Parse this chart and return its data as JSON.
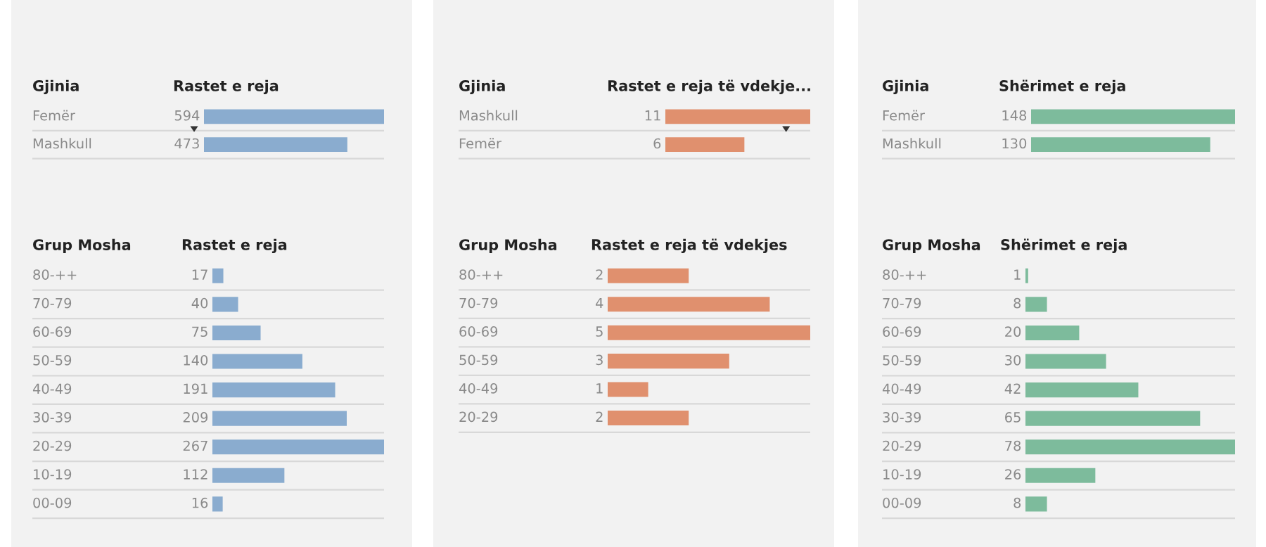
{
  "chart_data": [
    {
      "type": "bar",
      "orientation": "horizontal",
      "ylabel": "Gjinia",
      "xlabel": "Rastet e reja",
      "categories": [
        "Femër",
        "Mashkull"
      ],
      "values": [
        594,
        473
      ],
      "color": "#8aaccf",
      "data_labels": true,
      "grid": "y"
    },
    {
      "type": "bar",
      "orientation": "horizontal",
      "ylabel": "Gjinia",
      "xlabel": "Rastet e reja të vdekje...",
      "categories": [
        "Mashkull",
        "Femër"
      ],
      "values": [
        11,
        6
      ],
      "color": "#e0906e",
      "data_labels": true,
      "grid": "y"
    },
    {
      "type": "bar",
      "orientation": "horizontal",
      "ylabel": "Gjinia",
      "xlabel": "Shërimet e reja",
      "categories": [
        "Femër",
        "Mashkull"
      ],
      "values": [
        148,
        130
      ],
      "color": "#7dbb9c",
      "data_labels": true,
      "grid": "y"
    },
    {
      "type": "bar",
      "orientation": "horizontal",
      "ylabel": "Grup Mosha",
      "xlabel": "Rastet e reja",
      "categories": [
        "80-++",
        "70-79",
        "60-69",
        "50-59",
        "40-49",
        "30-39",
        "20-29",
        "10-19",
        "00-09"
      ],
      "values": [
        17,
        40,
        75,
        140,
        191,
        209,
        267,
        112,
        16
      ],
      "color": "#8aaccf",
      "data_labels": true,
      "grid": "y"
    },
    {
      "type": "bar",
      "orientation": "horizontal",
      "ylabel": "Grup Mosha",
      "xlabel": "Rastet e reja të vdekjes",
      "categories": [
        "80-++",
        "70-79",
        "60-69",
        "50-59",
        "40-49",
        "20-29"
      ],
      "values": [
        2,
        4,
        5,
        3,
        1,
        2
      ],
      "color": "#e0906e",
      "data_labels": true,
      "grid": "y"
    },
    {
      "type": "bar",
      "orientation": "horizontal",
      "ylabel": "Grup Mosha",
      "xlabel": "Shërimet e reja",
      "categories": [
        "80-++",
        "70-79",
        "60-69",
        "50-59",
        "40-49",
        "30-39",
        "20-29",
        "10-19",
        "00-09"
      ],
      "values": [
        1,
        8,
        20,
        30,
        42,
        65,
        78,
        26,
        8
      ],
      "color": "#7dbb9c",
      "data_labels": true,
      "grid": "y"
    }
  ]
}
